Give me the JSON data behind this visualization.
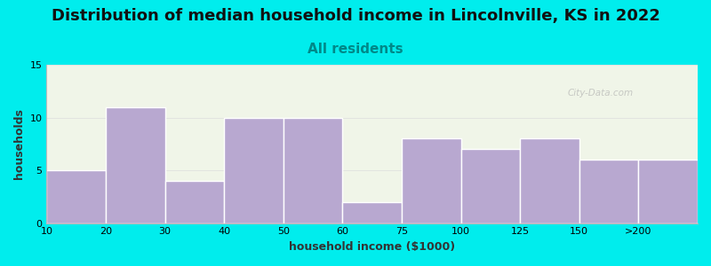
{
  "title": "Distribution of median household income in Lincolnville, KS in 2022",
  "subtitle": "All residents",
  "xlabel": "household income ($1000)",
  "ylabel": "households",
  "categories": [
    "10",
    "20",
    "30",
    "40",
    "50",
    "60",
    "75",
    "100",
    "125",
    "150",
    ">200"
  ],
  "values": [
    5,
    11,
    4,
    10,
    10,
    2,
    8,
    7,
    8,
    6,
    6
  ],
  "bar_color": "#b8a8d0",
  "bar_edgecolor": "#ffffff",
  "ylim": [
    0,
    15
  ],
  "yticks": [
    0,
    5,
    10,
    15
  ],
  "background_color": "#00eded",
  "plot_bg_color": "#f0f5e8",
  "title_fontsize": 13,
  "subtitle_fontsize": 11,
  "subtitle_color": "#008888",
  "axis_label_fontsize": 9,
  "tick_fontsize": 8,
  "watermark": "City-Data.com"
}
